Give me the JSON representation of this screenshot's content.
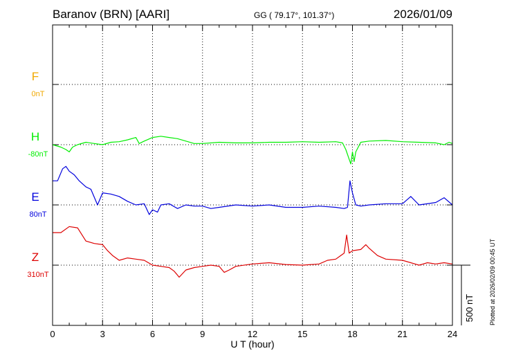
{
  "header": {
    "station": "Baranov (BRN)  [AARI]",
    "coords": "GG ( 79.17°, 101.37°)",
    "date": "2026/01/09"
  },
  "side_note": "Plotted at 2026/02/09 00:45 UT",
  "chart_data": {
    "type": "line",
    "xlabel": "U T (hour)",
    "xlim": [
      0,
      24
    ],
    "x_ticks": [
      "0",
      "3",
      "6",
      "9",
      "12",
      "15",
      "18",
      "21",
      "24"
    ],
    "scale_bar_label": "500 nT",
    "scale_bar_nT": 500,
    "nT_per_row": 500,
    "series": [
      {
        "name": "F",
        "baseline_label": "0nT",
        "color": "#f0a800",
        "x": [],
        "values": []
      },
      {
        "name": "H",
        "baseline_label": "-80nT",
        "color": "#00ee00",
        "x": [
          0,
          0.5,
          0.8,
          1.0,
          1.2,
          1.5,
          2.0,
          2.5,
          3.0,
          3.5,
          4.0,
          4.5,
          5.0,
          5.2,
          5.5,
          6.0,
          6.5,
          7.0,
          7.5,
          8.0,
          8.5,
          9.0,
          10,
          11,
          12,
          13,
          14,
          15,
          16,
          17,
          17.4,
          17.6,
          17.8,
          17.9,
          18.0,
          18.1,
          18.2,
          18.5,
          19,
          20,
          21,
          22,
          23,
          23.5,
          23.8,
          24
        ],
        "values": [
          0,
          -20,
          -40,
          -60,
          -20,
          0,
          20,
          10,
          0,
          20,
          25,
          40,
          60,
          10,
          30,
          60,
          70,
          60,
          50,
          30,
          10,
          10,
          20,
          15,
          15,
          20,
          20,
          25,
          20,
          25,
          15,
          -40,
          -120,
          -160,
          -60,
          -140,
          -60,
          20,
          30,
          35,
          25,
          20,
          15,
          0,
          20,
          10
        ]
      },
      {
        "name": "E",
        "baseline_label": "80nT",
        "color": "#0000dd",
        "x": [
          0,
          0.3,
          0.6,
          0.8,
          1.0,
          1.3,
          1.6,
          2.0,
          2.3,
          2.7,
          3.0,
          3.5,
          4.0,
          4.5,
          5.0,
          5.5,
          5.8,
          6.0,
          6.3,
          6.5,
          7.0,
          7.5,
          8.0,
          8.5,
          9.0,
          9.5,
          10,
          11,
          12,
          13,
          14,
          15,
          16,
          17,
          17.5,
          17.7,
          17.85,
          18.0,
          18.2,
          18.5,
          19,
          20,
          21,
          21.5,
          22,
          23,
          23.5,
          24
        ],
        "values": [
          200,
          200,
          300,
          320,
          280,
          250,
          200,
          150,
          130,
          0,
          100,
          90,
          70,
          30,
          0,
          10,
          -80,
          -40,
          -60,
          0,
          10,
          -30,
          0,
          -10,
          -10,
          -30,
          -20,
          0,
          -10,
          0,
          -20,
          -20,
          -10,
          -20,
          -30,
          -20,
          200,
          100,
          0,
          -10,
          0,
          10,
          10,
          70,
          0,
          20,
          60,
          0
        ]
      },
      {
        "name": "Z",
        "baseline_label": "310nT",
        "color": "#dd0000",
        "x": [
          0,
          0.5,
          1.0,
          1.5,
          2.0,
          2.5,
          3.0,
          3.3,
          3.6,
          4.0,
          4.5,
          5.0,
          5.5,
          6.0,
          6.5,
          7.0,
          7.3,
          7.6,
          8.0,
          8.5,
          9.0,
          9.5,
          10.0,
          10.3,
          10.6,
          11,
          12,
          13,
          14,
          15,
          16,
          16.5,
          17,
          17.3,
          17.5,
          17.65,
          17.8,
          18.0,
          18.5,
          18.8,
          19,
          19.5,
          20,
          21,
          22,
          22.5,
          23,
          23.5,
          24
        ],
        "values": [
          270,
          270,
          320,
          310,
          200,
          180,
          170,
          120,
          80,
          40,
          60,
          50,
          40,
          0,
          -10,
          -20,
          -50,
          -100,
          -40,
          -20,
          -10,
          0,
          -10,
          -60,
          -40,
          -10,
          10,
          20,
          5,
          0,
          10,
          40,
          50,
          80,
          100,
          250,
          100,
          120,
          130,
          170,
          140,
          80,
          50,
          40,
          0,
          20,
          10,
          20,
          10
        ]
      }
    ]
  }
}
